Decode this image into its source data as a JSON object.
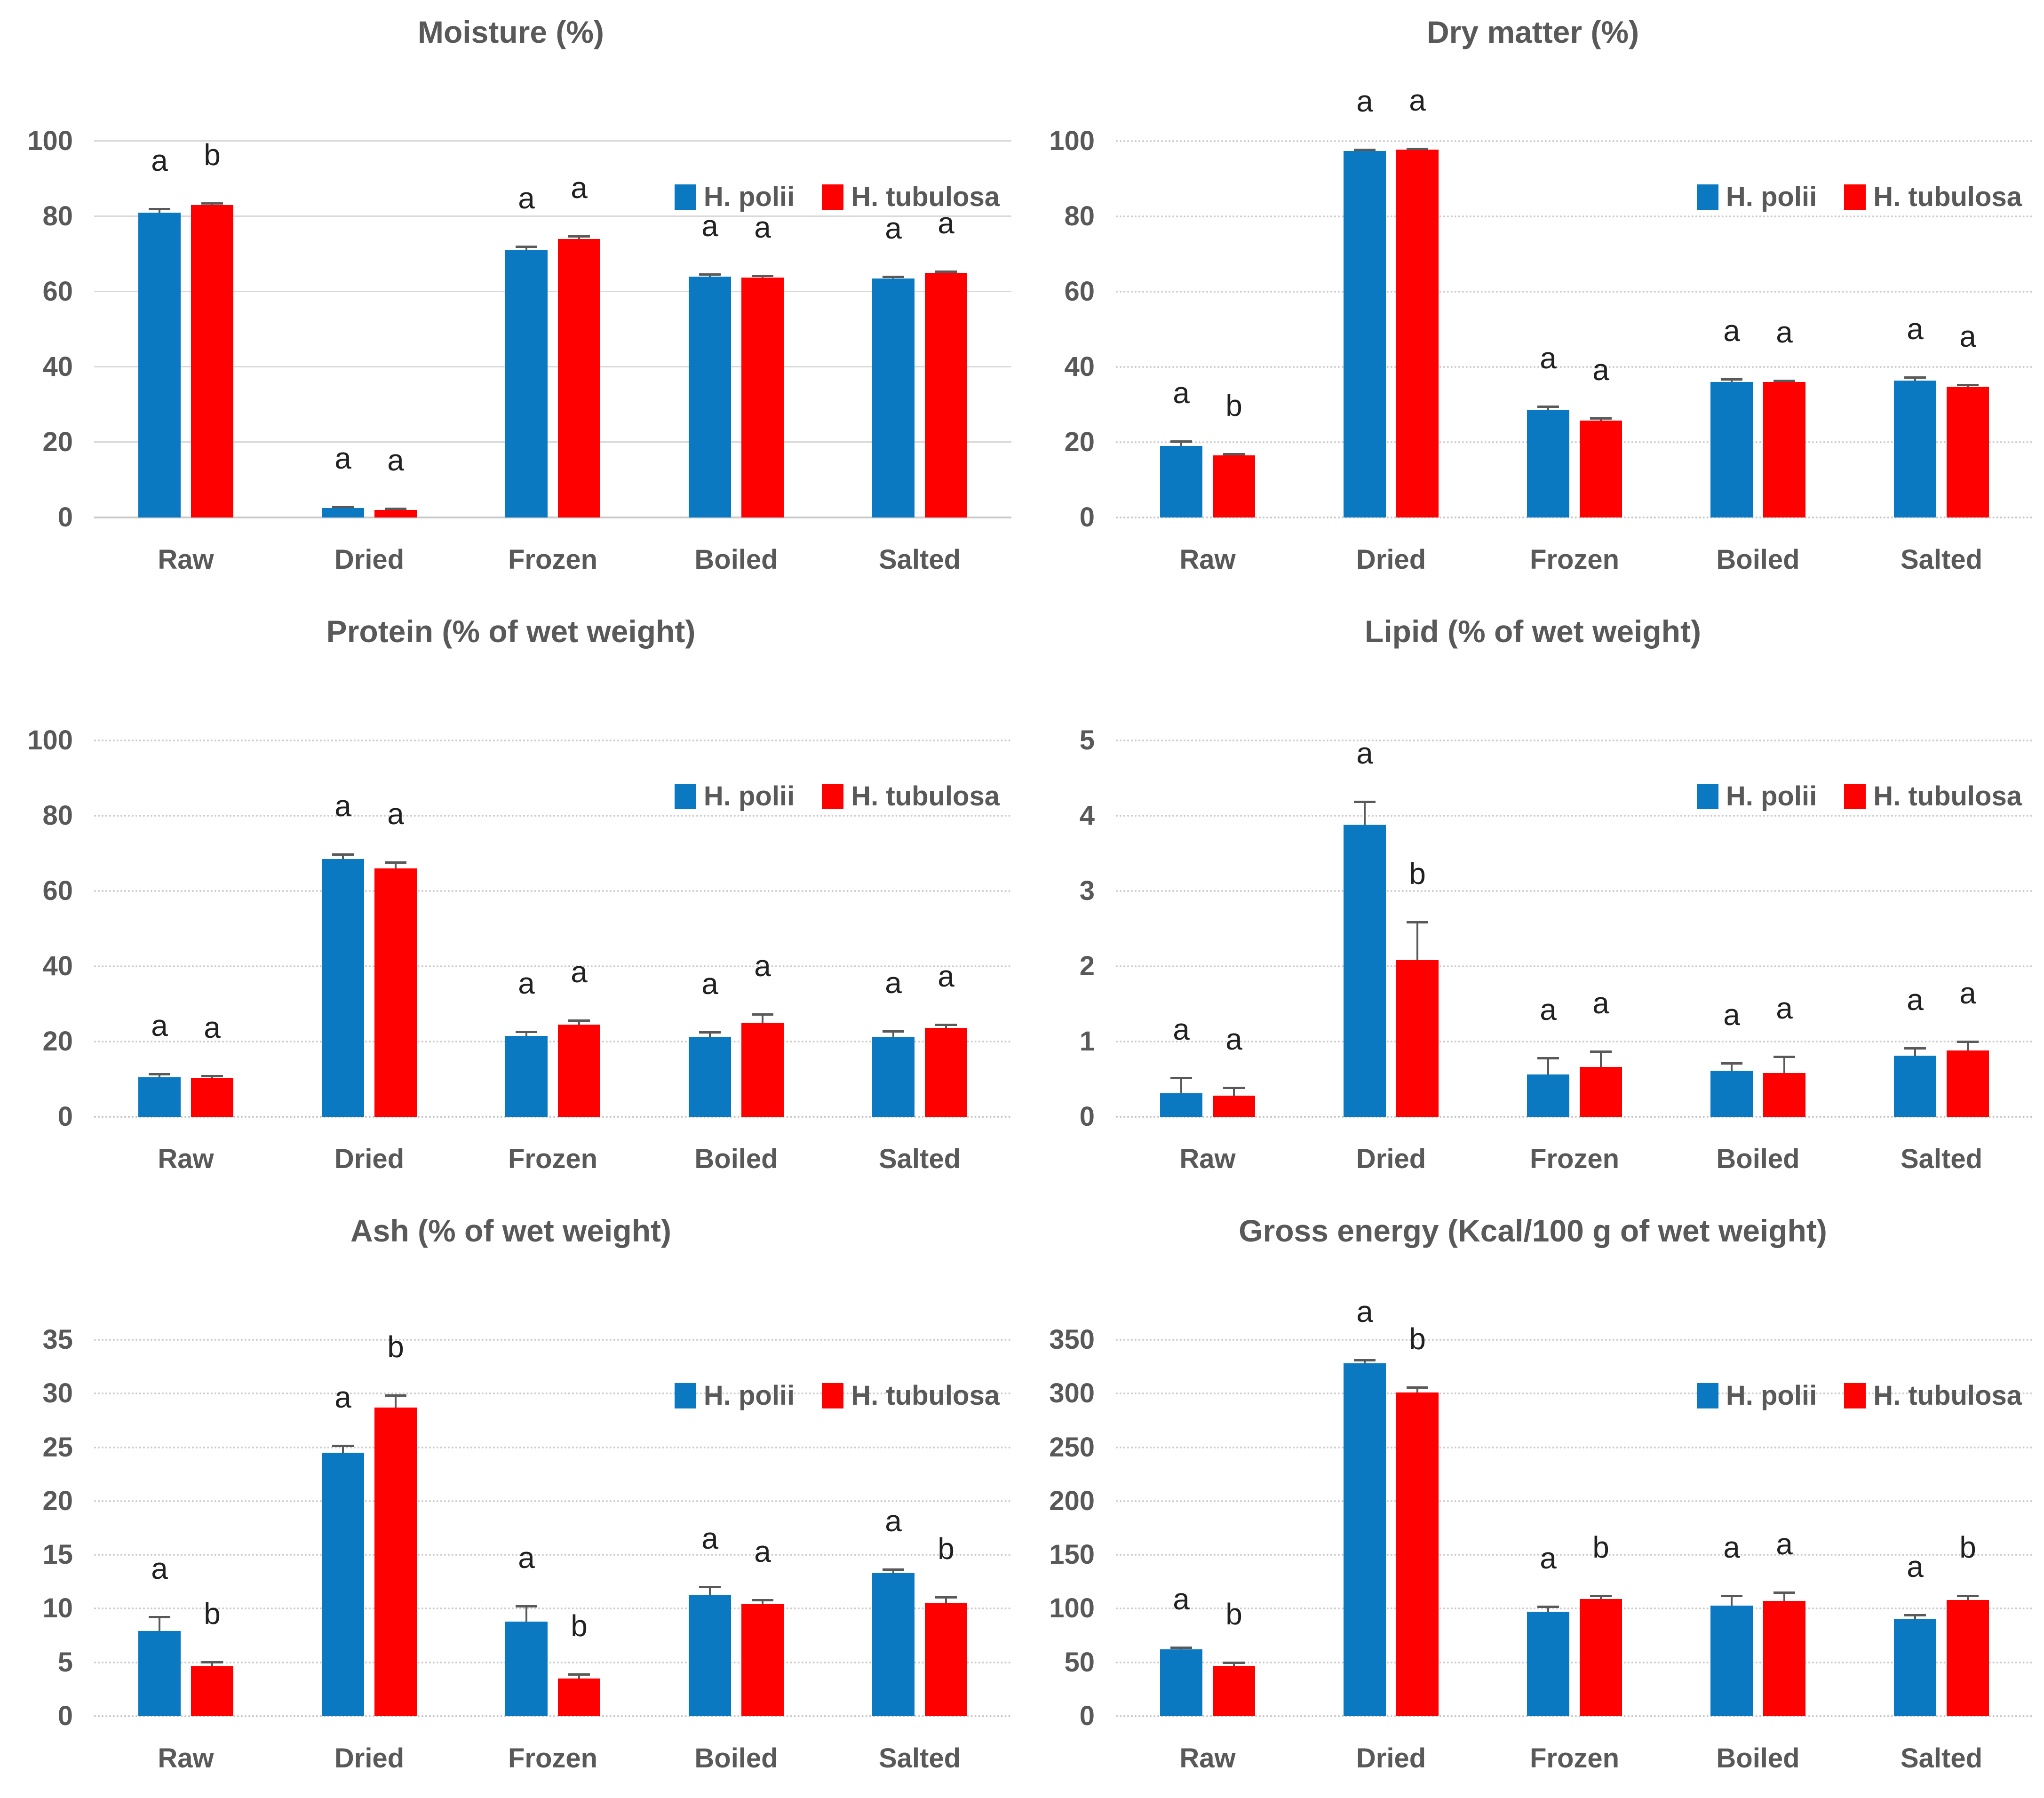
{
  "figure": {
    "background": "#ffffff",
    "text_color": "#595959",
    "letter_color": "#212121",
    "gridline_color": "#d9d9d9",
    "axis_line_color": "#c9c9c9",
    "error_bar_color": "#595959",
    "series_colors": {
      "h_polii": "#0b78c2",
      "h_tubulosa": "#fe0000"
    }
  },
  "chart_data": [
    {
      "type": "bar",
      "title": "Moisture (%)",
      "categories": [
        "Raw",
        "Dried",
        "Frozen",
        "Boiled",
        "Salted"
      ],
      "ylim": [
        0,
        100
      ],
      "yticks": [
        0,
        20,
        40,
        60,
        80,
        100
      ],
      "grid_style": "solid",
      "legend_position": "top-right",
      "series": [
        {
          "name": "H. polii",
          "color": "#0b78c2",
          "values": [
            81,
            2.5,
            71,
            64,
            63.5
          ],
          "errors": [
            1.0,
            0.4,
            1.0,
            0.6,
            0.5
          ],
          "letters": [
            "a",
            "a",
            "a",
            "a",
            "a"
          ]
        },
        {
          "name": "H. tubulosa",
          "color": "#fe0000",
          "values": [
            83,
            2.0,
            74,
            63.7,
            65
          ],
          "errors": [
            0.5,
            0.4,
            0.8,
            0.6,
            0.4
          ],
          "letters": [
            "b",
            "a",
            "a",
            "a",
            "a"
          ]
        }
      ]
    },
    {
      "type": "bar",
      "title": "Dry matter (%)",
      "categories": [
        "Raw",
        "Dried",
        "Frozen",
        "Boiled",
        "Salted"
      ],
      "ylim": [
        0,
        100
      ],
      "yticks": [
        0,
        20,
        40,
        60,
        80,
        100
      ],
      "grid_style": "dotted",
      "legend_position": "top-right",
      "series": [
        {
          "name": "H. polii",
          "color": "#0b78c2",
          "values": [
            19,
            97.4,
            28.5,
            36,
            36.4
          ],
          "errors": [
            1.2,
            0.4,
            1.0,
            0.7,
            0.9
          ],
          "letters": [
            "a",
            "a",
            "a",
            "a",
            "a"
          ]
        },
        {
          "name": "H. tubulosa",
          "color": "#fe0000",
          "values": [
            16.5,
            97.7,
            25.7,
            36,
            34.8
          ],
          "errors": [
            0.4,
            0.3,
            0.7,
            0.4,
            0.5
          ],
          "letters": [
            "b",
            "a",
            "a",
            "a",
            "a"
          ]
        }
      ]
    },
    {
      "type": "bar",
      "title": "Protein (% of wet weight)",
      "categories": [
        "Raw",
        "Dried",
        "Frozen",
        "Boiled",
        "Salted"
      ],
      "ylim": [
        0,
        100
      ],
      "yticks": [
        0,
        20,
        40,
        60,
        80,
        100
      ],
      "grid_style": "dotted",
      "legend_position": "top-right",
      "series": [
        {
          "name": "H. polii",
          "color": "#0b78c2",
          "values": [
            10.5,
            68.5,
            21.5,
            21.2,
            21.2
          ],
          "errors": [
            0.9,
            1.3,
            1.1,
            1.3,
            1.6
          ],
          "letters": [
            "a",
            "a",
            "a",
            "a",
            "a"
          ]
        },
        {
          "name": "H. tubulosa",
          "color": "#fe0000",
          "values": [
            10.2,
            66,
            24.5,
            25,
            23.6
          ],
          "errors": [
            0.7,
            1.6,
            1.1,
            2.2,
            0.9
          ],
          "letters": [
            "a",
            "a",
            "a",
            "a",
            "a"
          ]
        }
      ]
    },
    {
      "type": "bar",
      "title": "Lipid (% of wet weight)",
      "categories": [
        "Raw",
        "Dried",
        "Frozen",
        "Boiled",
        "Salted"
      ],
      "ylim": [
        0,
        5
      ],
      "yticks": [
        0,
        1,
        2,
        3,
        4,
        5
      ],
      "grid_style": "dotted",
      "legend_position": "top-right",
      "series": [
        {
          "name": "H. polii",
          "color": "#0b78c2",
          "values": [
            0.31,
            3.88,
            0.56,
            0.61,
            0.81
          ],
          "errors": [
            0.21,
            0.31,
            0.22,
            0.1,
            0.1
          ],
          "letters": [
            "a",
            "a",
            "a",
            "a",
            "a"
          ]
        },
        {
          "name": "H. tubulosa",
          "color": "#fe0000",
          "values": [
            0.28,
            2.08,
            0.66,
            0.58,
            0.88
          ],
          "errors": [
            0.11,
            0.51,
            0.21,
            0.22,
            0.12
          ],
          "letters": [
            "a",
            "b",
            "a",
            "a",
            "a"
          ]
        }
      ]
    },
    {
      "type": "bar",
      "title": "Ash (% of wet weight)",
      "categories": [
        "Raw",
        "Dried",
        "Frozen",
        "Boiled",
        "Salted"
      ],
      "ylim": [
        0,
        35
      ],
      "yticks": [
        0,
        5,
        10,
        15,
        20,
        25,
        30,
        35
      ],
      "grid_style": "dotted",
      "legend_position": "top-right",
      "series": [
        {
          "name": "H. polii",
          "color": "#0b78c2",
          "values": [
            7.9,
            24.5,
            8.8,
            11.3,
            13.3
          ],
          "errors": [
            1.35,
            0.65,
            1.45,
            0.75,
            0.35
          ],
          "letters": [
            "a",
            "a",
            "a",
            "a",
            "a"
          ]
        },
        {
          "name": "H. tubulosa",
          "color": "#fe0000",
          "values": [
            4.65,
            28.7,
            3.5,
            10.4,
            10.5
          ],
          "errors": [
            0.4,
            1.15,
            0.4,
            0.4,
            0.55
          ],
          "letters": [
            "b",
            "b",
            "b",
            "a",
            "b"
          ]
        }
      ]
    },
    {
      "type": "bar",
      "title": "Gross energy (Kcal/100 g of wet weight)",
      "categories": [
        "Raw",
        "Dried",
        "Frozen",
        "Boiled",
        "Salted"
      ],
      "ylim": [
        0,
        350
      ],
      "yticks": [
        0,
        50,
        100,
        150,
        200,
        250,
        300,
        350
      ],
      "grid_style": "dotted",
      "legend_position": "top-right",
      "series": [
        {
          "name": "H. polii",
          "color": "#0b78c2",
          "values": [
            62,
            328,
            97,
            103,
            90
          ],
          "errors": [
            2,
            3,
            5,
            9,
            4
          ],
          "letters": [
            "a",
            "a",
            "a",
            "a",
            "a"
          ]
        },
        {
          "name": "H. tubulosa",
          "color": "#fe0000",
          "values": [
            47,
            301,
            109,
            107,
            108
          ],
          "errors": [
            3,
            5,
            3,
            8,
            4
          ],
          "letters": [
            "b",
            "b",
            "b",
            "a",
            "b"
          ]
        }
      ]
    }
  ]
}
